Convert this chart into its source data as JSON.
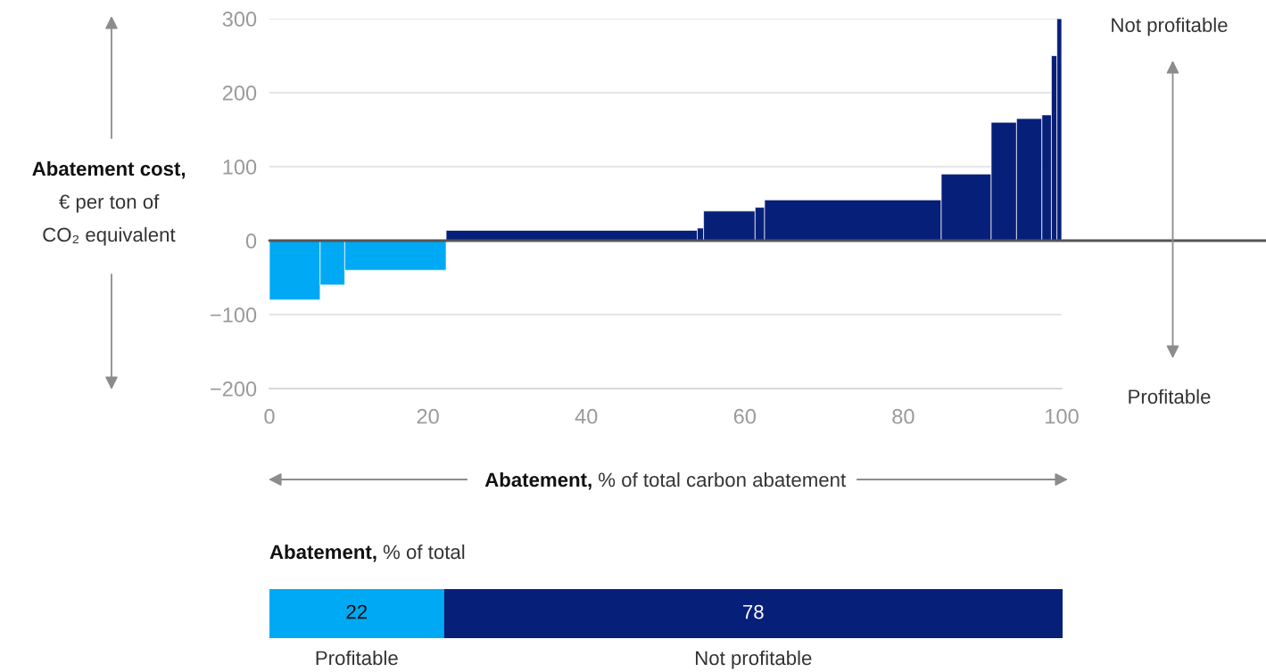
{
  "chart_data": [
    {
      "type": "histogram",
      "xlabel": "Abatement, % of total carbon abatement",
      "ylabel": "Abatement cost,\n€ per ton of\nCO₂ equivalent",
      "annotations": [
        "Not profitable",
        "Profitable"
      ],
      "bins": [
        0,
        6.4,
        9.5,
        22.3,
        54,
        54.8,
        61.3,
        62.5,
        84.8,
        91.1,
        94.3,
        97.5,
        98.7,
        99.4,
        100
      ],
      "values": [
        -80,
        -60,
        -40,
        14,
        17,
        40,
        45,
        55,
        90,
        160,
        165,
        170,
        250,
        300
      ],
      "colors": [
        "#00a9f4",
        "#00a9f4",
        "#00a9f4",
        "#061f79",
        "#061f79",
        "#061f79",
        "#061f79",
        "#061f79",
        "#061f79",
        "#061f79",
        "#061f79",
        "#061f79",
        "#061f79",
        "#061f79"
      ],
      "xlim": [
        0,
        100
      ],
      "ylim": [
        -200,
        300
      ],
      "xticks": [
        0,
        20,
        40,
        60,
        80,
        100
      ],
      "yticks": [
        {
          "value": -200,
          "label": "−200"
        },
        {
          "value": -100,
          "label": "−100"
        },
        0,
        100,
        200,
        300
      ],
      "grid": "y",
      "ref_lines": [
        {
          "axis": "y",
          "value": 0,
          "color": "#555555"
        }
      ]
    },
    {
      "type": "bar",
      "orientation": "horizontal",
      "stacked": true,
      "title": "Abatement, % of total",
      "categories": [
        null
      ],
      "series": [
        {
          "name": "Profitable",
          "color": "#00a9f4",
          "values": [
            22
          ]
        },
        {
          "name": "Not profitable",
          "color": "#061f79",
          "values": [
            78
          ]
        }
      ],
      "data_labels": true,
      "tick_labels": false
    }
  ]
}
